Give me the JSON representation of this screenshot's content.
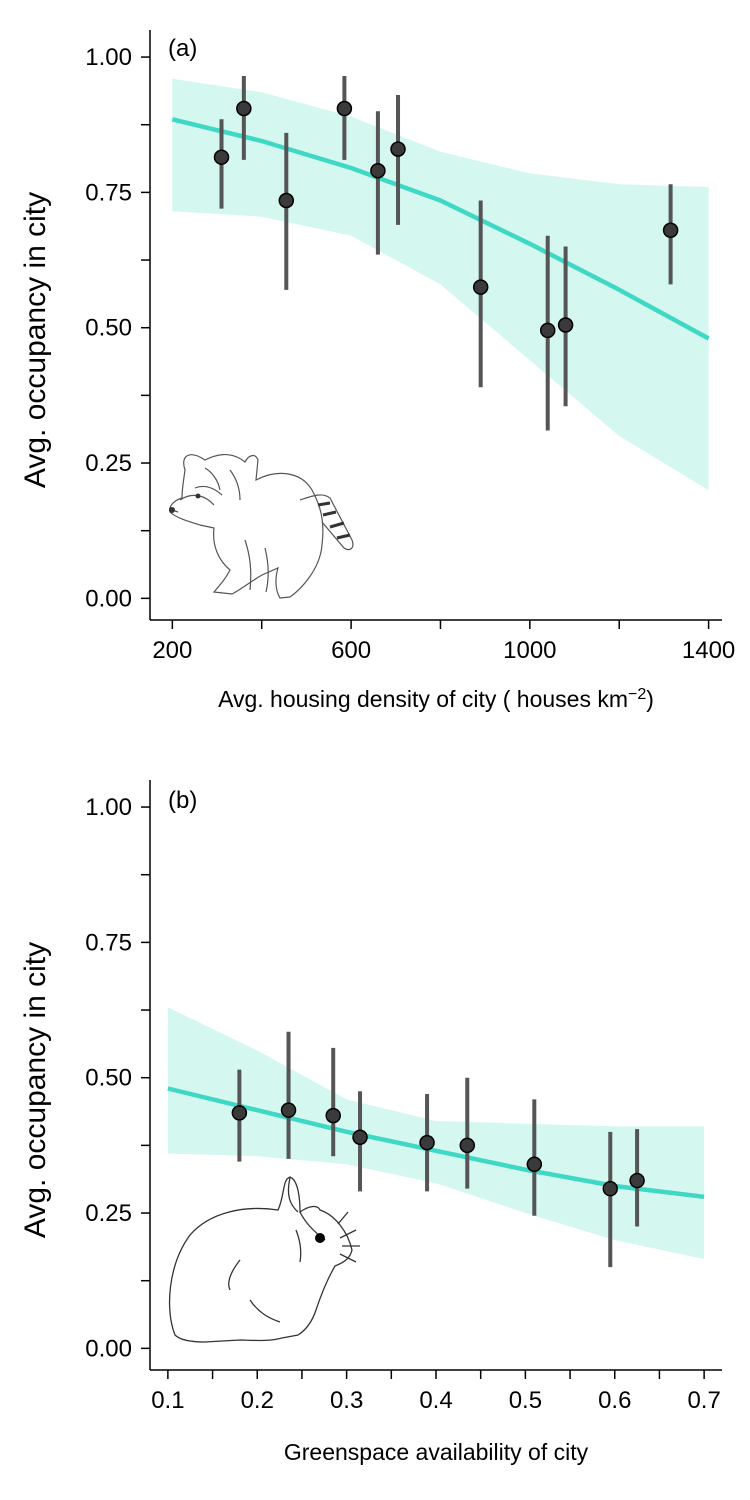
{
  "colors": {
    "ribbon": "#d4f7f0",
    "trend_line": "#3fd8c4",
    "point_fill": "#3a3a3a",
    "point_stroke": "#000000",
    "error_bar": "#555555"
  },
  "chart_data": [
    {
      "type": "scatter",
      "panel_label": "(a)",
      "xlabel": "Avg. housing density of city ( houses  km",
      "xlabel_superscript": "−2",
      "xlabel_close": ")",
      "ylabel": "Avg. occupancy in city",
      "xlim": [
        150,
        1430
      ],
      "ylim": [
        -0.04,
        1.05
      ],
      "x_ticks": [
        200,
        400,
        600,
        800,
        1000,
        1200,
        1400
      ],
      "x_tick_labels": [
        "200",
        "",
        "600",
        "",
        "1000",
        "",
        "1400"
      ],
      "y_ticks": [
        0.0,
        0.125,
        0.25,
        0.375,
        0.5,
        0.625,
        0.75,
        0.875,
        1.0
      ],
      "y_tick_labels": [
        "0.00",
        "",
        "0.25",
        "",
        "0.50",
        "",
        "0.75",
        "",
        "1.00"
      ],
      "illustration": "raccoon",
      "points": [
        {
          "x": 310,
          "y": 0.815,
          "lo": 0.72,
          "hi": 0.885
        },
        {
          "x": 360,
          "y": 0.905,
          "lo": 0.81,
          "hi": 0.965
        },
        {
          "x": 455,
          "y": 0.735,
          "lo": 0.57,
          "hi": 0.86
        },
        {
          "x": 585,
          "y": 0.905,
          "lo": 0.81,
          "hi": 0.965
        },
        {
          "x": 660,
          "y": 0.79,
          "lo": 0.635,
          "hi": 0.9
        },
        {
          "x": 705,
          "y": 0.83,
          "lo": 0.69,
          "hi": 0.93
        },
        {
          "x": 890,
          "y": 0.575,
          "lo": 0.39,
          "hi": 0.735
        },
        {
          "x": 1040,
          "y": 0.495,
          "lo": 0.31,
          "hi": 0.67
        },
        {
          "x": 1080,
          "y": 0.505,
          "lo": 0.355,
          "hi": 0.65
        },
        {
          "x": 1315,
          "y": 0.68,
          "lo": 0.58,
          "hi": 0.765
        }
      ],
      "fit": {
        "x": [
          200,
          400,
          600,
          800,
          1000,
          1200,
          1400
        ],
        "y": [
          0.885,
          0.845,
          0.795,
          0.735,
          0.655,
          0.57,
          0.48
        ],
        "lower": [
          0.715,
          0.705,
          0.67,
          0.58,
          0.44,
          0.3,
          0.2
        ],
        "upper": [
          0.96,
          0.935,
          0.89,
          0.825,
          0.785,
          0.765,
          0.76
        ]
      }
    },
    {
      "type": "scatter",
      "panel_label": "(b)",
      "xlabel": "Greenspace availability of city",
      "ylabel": "Avg. occupancy in city",
      "xlim": [
        0.08,
        0.72
      ],
      "ylim": [
        -0.04,
        1.05
      ],
      "x_ticks": [
        0.1,
        0.15,
        0.2,
        0.25,
        0.3,
        0.35,
        0.4,
        0.45,
        0.5,
        0.55,
        0.6,
        0.65,
        0.7
      ],
      "x_tick_labels": [
        "0.1",
        "",
        "0.2",
        "",
        "0.3",
        "",
        "0.4",
        "",
        "0.5",
        "",
        "0.6",
        "",
        "0.7"
      ],
      "y_ticks": [
        0.0,
        0.125,
        0.25,
        0.375,
        0.5,
        0.625,
        0.75,
        0.875,
        1.0
      ],
      "y_tick_labels": [
        "0.00",
        "",
        "0.25",
        "",
        "0.50",
        "",
        "0.75",
        "",
        "1.00"
      ],
      "illustration": "rabbit",
      "points": [
        {
          "x": 0.18,
          "y": 0.435,
          "lo": 0.345,
          "hi": 0.515
        },
        {
          "x": 0.235,
          "y": 0.44,
          "lo": 0.35,
          "hi": 0.585
        },
        {
          "x": 0.285,
          "y": 0.43,
          "lo": 0.355,
          "hi": 0.555
        },
        {
          "x": 0.315,
          "y": 0.39,
          "lo": 0.29,
          "hi": 0.475
        },
        {
          "x": 0.39,
          "y": 0.38,
          "lo": 0.29,
          "hi": 0.47
        },
        {
          "x": 0.435,
          "y": 0.375,
          "lo": 0.295,
          "hi": 0.5
        },
        {
          "x": 0.51,
          "y": 0.34,
          "lo": 0.245,
          "hi": 0.46
        },
        {
          "x": 0.595,
          "y": 0.295,
          "lo": 0.15,
          "hi": 0.4
        },
        {
          "x": 0.625,
          "y": 0.31,
          "lo": 0.225,
          "hi": 0.405
        }
      ],
      "fit": {
        "x": [
          0.1,
          0.2,
          0.3,
          0.4,
          0.5,
          0.6,
          0.7
        ],
        "y": [
          0.48,
          0.44,
          0.4,
          0.365,
          0.33,
          0.3,
          0.28
        ],
        "lower": [
          0.36,
          0.355,
          0.34,
          0.305,
          0.25,
          0.2,
          0.165
        ],
        "upper": [
          0.63,
          0.55,
          0.46,
          0.42,
          0.415,
          0.41,
          0.41
        ]
      }
    }
  ]
}
